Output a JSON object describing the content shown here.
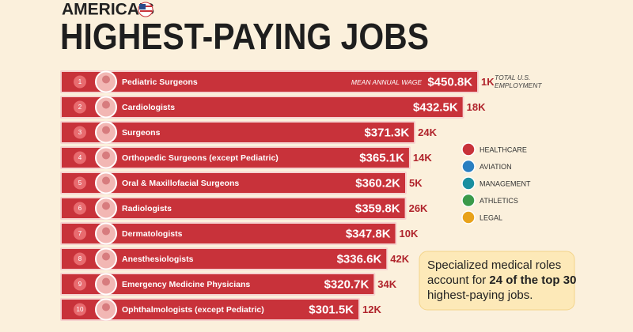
{
  "chart_data": {
    "type": "bar",
    "orientation": "horizontal",
    "kicker": "AMERICA'S",
    "title": "HIGHEST-PAYING JOBS",
    "value_caption": "MEAN ANNUAL WAGE",
    "count_caption": [
      "TOTAL U.S.",
      "EMPLOYMENT"
    ],
    "ranks": [
      1,
      2,
      3,
      4,
      5,
      6,
      7,
      8,
      9,
      10
    ],
    "categories": [
      "Pediatric Surgeons",
      "Cardiologists",
      "Surgeons",
      "Orthopedic Surgeons (except Pediatric)",
      "Oral & Maxillofacial Surgeons",
      "Radiologists",
      "Dermatologists",
      "Anesthesiologists",
      "Emergency Medicine Physicians",
      "Ophthalmologists (except Pediatric)"
    ],
    "series": [
      {
        "name": "Mean annual wage",
        "color": "#c8323a",
        "values": [
          450.8,
          432.5,
          371.3,
          365.1,
          360.2,
          359.8,
          347.8,
          336.6,
          320.7,
          301.5
        ],
        "value_labels": [
          "$450.8K",
          "$432.5K",
          "$371.3K",
          "$365.1K",
          "$360.2K",
          "$359.8K",
          "$347.8K",
          "$336.6K",
          "$320.7K",
          "$301.5K"
        ]
      },
      {
        "name": "Total U.S. employment",
        "color": "#b0242c",
        "values": [
          1,
          18,
          24,
          14,
          5,
          26,
          10,
          42,
          34,
          12
        ],
        "value_labels": [
          "1K",
          "18K",
          "24K",
          "14K",
          "5K",
          "26K",
          "10K",
          "42K",
          "34K",
          "12K"
        ]
      }
    ],
    "legend": [
      {
        "name": "HEALTHCARE",
        "color": "#c8323a"
      },
      {
        "name": "AVIATION",
        "color": "#2a7fc1"
      },
      {
        "name": "MANAGEMENT",
        "color": "#1a8fa0"
      },
      {
        "name": "ATHLETICS",
        "color": "#3a9a4a"
      },
      {
        "name": "LEGAL",
        "color": "#e8a21a"
      }
    ],
    "callout": [
      "Specialized medical roles",
      "account for ",
      "24 of the top 30",
      "highest-paying jobs."
    ]
  }
}
